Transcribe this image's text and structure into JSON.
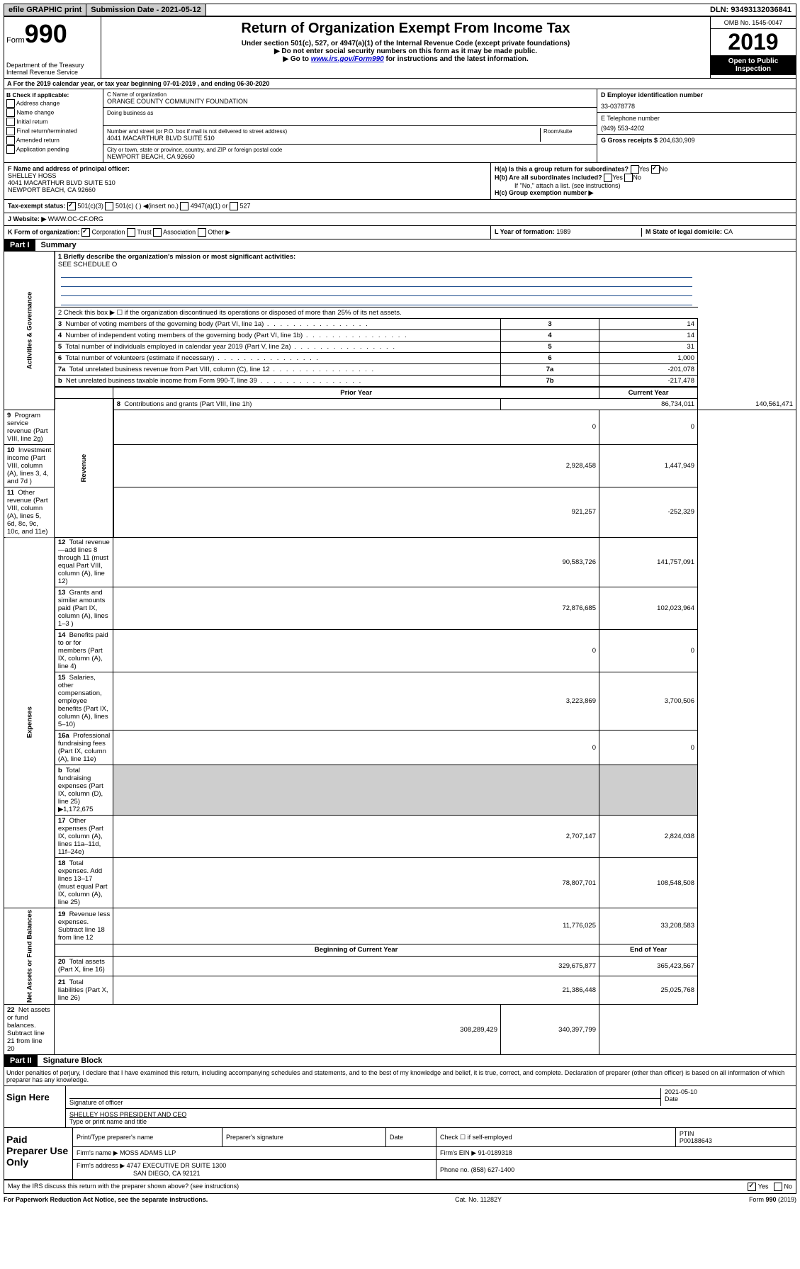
{
  "top": {
    "efile": "efile GRAPHIC print",
    "submission": "Submission Date - 2021-05-12",
    "dln": "DLN: 93493132036841"
  },
  "header": {
    "form_prefix": "Form",
    "form_no": "990",
    "dept1": "Department of the Treasury",
    "dept2": "Internal Revenue Service",
    "title": "Return of Organization Exempt From Income Tax",
    "subtitle": "Under section 501(c), 527, or 4947(a)(1) of the Internal Revenue Code (except private foundations)",
    "note1": "▶ Do not enter social security numbers on this form as it may be made public.",
    "note2a": "▶ Go to ",
    "note2link": "www.irs.gov/Form990",
    "note2b": " for instructions and the latest information.",
    "omb": "OMB No. 1545-0047",
    "year": "2019",
    "open": "Open to Public Inspection"
  },
  "lineA": "A For the 2019 calendar year, or tax year beginning 07-01-2019    , and ending 06-30-2020",
  "boxB": {
    "title": "B Check if applicable:",
    "items": [
      "Address change",
      "Name change",
      "Initial return",
      "Final return/terminated",
      "Amended return",
      "Application pending"
    ]
  },
  "boxC": {
    "name_lbl": "C Name of organization",
    "name": "ORANGE COUNTY COMMUNITY FOUNDATION",
    "dba_lbl": "Doing business as",
    "addr_lbl": "Number and street (or P.O. box if mail is not delivered to street address)",
    "room_lbl": "Room/suite",
    "addr": "4041 MACARTHUR BLVD SUITE 510",
    "city_lbl": "City or town, state or province, country, and ZIP or foreign postal code",
    "city": "NEWPORT BEACH, CA  92660"
  },
  "boxD": {
    "lbl": "D Employer identification number",
    "val": "33-0378778"
  },
  "boxE": {
    "lbl": "E Telephone number",
    "val": "(949) 553-4202"
  },
  "boxG": {
    "lbl": "G Gross receipts $",
    "val": "204,630,909"
  },
  "boxF": {
    "lbl": "F Name and address of principal officer:",
    "name": "SHELLEY HOSS",
    "addr1": "4041 MACARTHUR BLVD SUITE 510",
    "addr2": "NEWPORT BEACH, CA  92660"
  },
  "boxH": {
    "a": "H(a)  Is this a group return for subordinates?",
    "b": "H(b)  Are all subordinates included?",
    "note": "If \"No,\" attach a list. (see instructions)",
    "c": "H(c)  Group exemption number ▶"
  },
  "taxstatus": {
    "lbl": "Tax-exempt status:",
    "o1": "501(c)(3)",
    "o2": "501(c) (  ) ◀(insert no.)",
    "o3": "4947(a)(1) or",
    "o4": "527"
  },
  "boxJ": {
    "lbl": "J Website: ▶",
    "val": "WWW.OC-CF.ORG"
  },
  "boxK": {
    "lbl": "K Form of organization:",
    "o": [
      "Corporation",
      "Trust",
      "Association",
      "Other ▶"
    ]
  },
  "boxL": {
    "lbl": "L Year of formation:",
    "val": "1989"
  },
  "boxM": {
    "lbl": "M State of legal domicile:",
    "val": "CA"
  },
  "part1": {
    "hdr": "Part I",
    "title": "Summary"
  },
  "summary": {
    "side1": "Activities & Governance",
    "side2": "Revenue",
    "side3": "Expenses",
    "side4": "Net Assets or Fund Balances",
    "l1": "1  Briefly describe the organization's mission or most significant activities:",
    "l1v": "SEE SCHEDULE O",
    "l2": "2   Check this box ▶ ☐  if the organization discontinued its operations or disposed of more than 25% of its net assets.",
    "rows_top": [
      {
        "n": "3",
        "t": "Number of voting members of the governing body (Part VI, line 1a)",
        "b": "3",
        "v": "14"
      },
      {
        "n": "4",
        "t": "Number of independent voting members of the governing body (Part VI, line 1b)",
        "b": "4",
        "v": "14"
      },
      {
        "n": "5",
        "t": "Total number of individuals employed in calendar year 2019 (Part V, line 2a)",
        "b": "5",
        "v": "31"
      },
      {
        "n": "6",
        "t": "Total number of volunteers (estimate if necessary)",
        "b": "6",
        "v": "1,000"
      },
      {
        "n": "7a",
        "t": "Total unrelated business revenue from Part VIII, column (C), line 12",
        "b": "7a",
        "v": "-201,078"
      },
      {
        "n": "b",
        "t": "Net unrelated business taxable income from Form 990-T, line 39",
        "b": "7b",
        "v": "-217,478"
      }
    ],
    "col_prior": "Prior Year",
    "col_curr": "Current Year",
    "rev": [
      {
        "n": "8",
        "t": "Contributions and grants (Part VIII, line 1h)",
        "p": "86,734,011",
        "c": "140,561,471"
      },
      {
        "n": "9",
        "t": "Program service revenue (Part VIII, line 2g)",
        "p": "0",
        "c": "0"
      },
      {
        "n": "10",
        "t": "Investment income (Part VIII, column (A), lines 3, 4, and 7d )",
        "p": "2,928,458",
        "c": "1,447,949"
      },
      {
        "n": "11",
        "t": "Other revenue (Part VIII, column (A), lines 5, 6d, 8c, 9c, 10c, and 11e)",
        "p": "921,257",
        "c": "-252,329"
      },
      {
        "n": "12",
        "t": "Total revenue—add lines 8 through 11 (must equal Part VIII, column (A), line 12)",
        "p": "90,583,726",
        "c": "141,757,091"
      }
    ],
    "exp": [
      {
        "n": "13",
        "t": "Grants and similar amounts paid (Part IX, column (A), lines 1–3 )",
        "p": "72,876,685",
        "c": "102,023,964"
      },
      {
        "n": "14",
        "t": "Benefits paid to or for members (Part IX, column (A), line 4)",
        "p": "0",
        "c": "0"
      },
      {
        "n": "15",
        "t": "Salaries, other compensation, employee benefits (Part IX, column (A), lines 5–10)",
        "p": "3,223,869",
        "c": "3,700,506"
      },
      {
        "n": "16a",
        "t": "Professional fundraising fees (Part IX, column (A), line 11e)",
        "p": "0",
        "c": "0"
      },
      {
        "n": "b",
        "t": "Total fundraising expenses (Part IX, column (D), line 25) ▶1,172,675",
        "p": "",
        "c": "",
        "shade": true
      },
      {
        "n": "17",
        "t": "Other expenses (Part IX, column (A), lines 11a–11d, 11f–24e)",
        "p": "2,707,147",
        "c": "2,824,038"
      },
      {
        "n": "18",
        "t": "Total expenses. Add lines 13–17 (must equal Part IX, column (A), line 25)",
        "p": "78,807,701",
        "c": "108,548,508"
      },
      {
        "n": "19",
        "t": "Revenue less expenses. Subtract line 18 from line 12",
        "p": "11,776,025",
        "c": "33,208,583"
      }
    ],
    "col_beg": "Beginning of Current Year",
    "col_end": "End of Year",
    "net": [
      {
        "n": "20",
        "t": "Total assets (Part X, line 16)",
        "p": "329,675,877",
        "c": "365,423,567"
      },
      {
        "n": "21",
        "t": "Total liabilities (Part X, line 26)",
        "p": "21,386,448",
        "c": "25,025,768"
      },
      {
        "n": "22",
        "t": "Net assets or fund balances. Subtract line 21 from line 20",
        "p": "308,289,429",
        "c": "340,397,799"
      }
    ]
  },
  "part2": {
    "hdr": "Part II",
    "title": "Signature Block"
  },
  "perjury": "Under penalties of perjury, I declare that I have examined this return, including accompanying schedules and statements, and to the best of my knowledge and belief, it is true, correct, and complete. Declaration of preparer (other than officer) is based on all information of which preparer has any knowledge.",
  "sign": {
    "side": "Sign Here",
    "sig_lbl": "Signature of officer",
    "date": "2021-05-10",
    "date_lbl": "Date",
    "name": "SHELLEY HOSS  PRESIDENT AND CEO",
    "name_lbl": "Type or print name and title"
  },
  "prep": {
    "side": "Paid Preparer Use Only",
    "c1": "Print/Type preparer's name",
    "c2": "Preparer's signature",
    "c3": "Date",
    "c4a": "Check ☐ if self-employed",
    "c5": "PTIN",
    "ptin": "P00188643",
    "firm_lbl": "Firm's name      ▶",
    "firm": "MOSS ADAMS LLP",
    "ein_lbl": "Firm's EIN ▶",
    "ein": "91-0189318",
    "addr_lbl": "Firm's address ▶",
    "addr1": "4747 EXECUTIVE DR SUITE 1300",
    "addr2": "SAN DIEGO, CA  92121",
    "phone_lbl": "Phone no.",
    "phone": "(858) 627-1400"
  },
  "discuss": "May the IRS discuss this return with the preparer shown above? (see instructions)",
  "footer": {
    "l": "For Paperwork Reduction Act Notice, see the separate instructions.",
    "m": "Cat. No. 11282Y",
    "r": "Form 990 (2019)"
  }
}
